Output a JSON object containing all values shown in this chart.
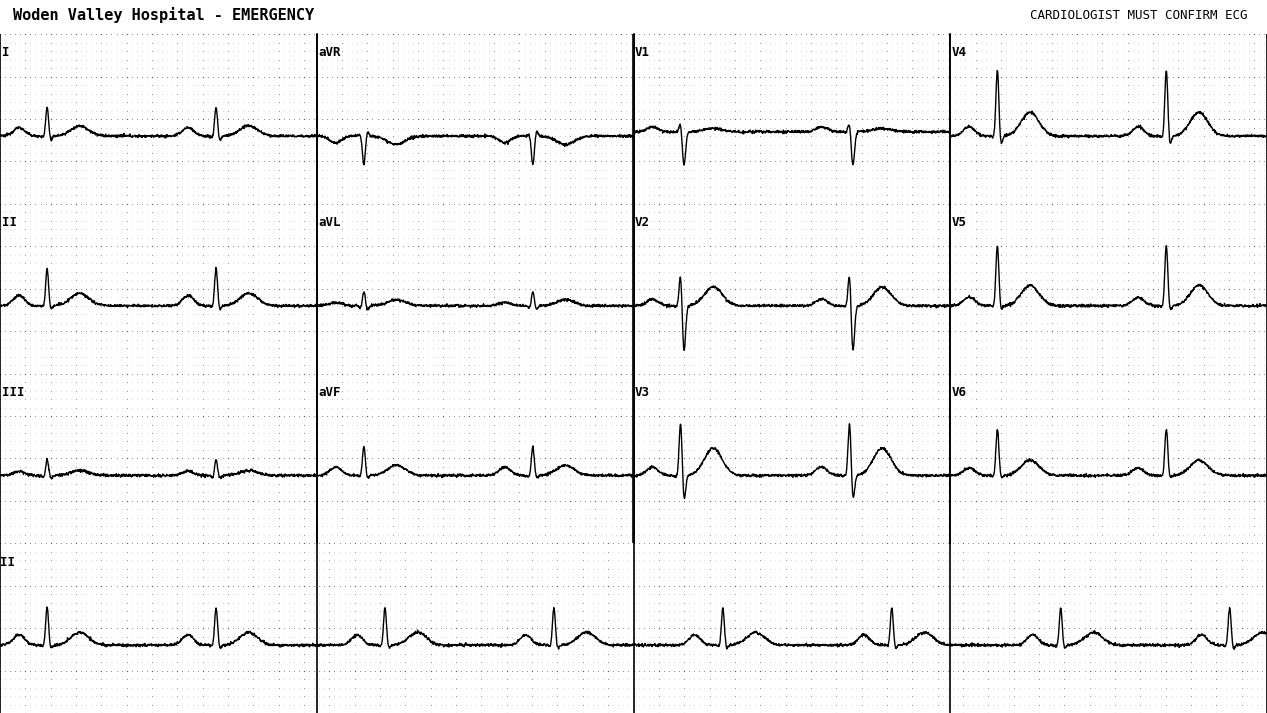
{
  "title_left": "Woden Valley Hospital - EMERGENCY",
  "title_right": "CARDIOLOGIST MUST CONFIRM ECG",
  "background_color": "#ffffff",
  "dot_color": "#aaaaaa",
  "major_dot_color": "#888888",
  "ecg_color": "#000000",
  "title_color": "#000000",
  "fig_width": 12.67,
  "fig_height": 7.13,
  "dpi": 100,
  "heart_rate": 45,
  "leads_row1": [
    "I",
    "aVR",
    "V1",
    "V4"
  ],
  "leads_row2": [
    "II",
    "aVL",
    "V2",
    "V5"
  ],
  "leads_row3": [
    "III",
    "aVF",
    "V3",
    "V6"
  ],
  "lead_rhythm": "II",
  "p_amps": {
    "I": 0.1,
    "II": 0.12,
    "III": 0.05,
    "aVR": -0.08,
    "aVL": 0.04,
    "aVF": 0.1,
    "V1": 0.06,
    "V2": 0.08,
    "V3": 0.1,
    "V4": 0.11,
    "V5": 0.1,
    "V6": 0.09
  },
  "q_amps": {
    "I": -0.03,
    "II": -0.03,
    "III": -0.04,
    "aVR": 0.03,
    "aVL": -0.04,
    "aVF": -0.03,
    "V1": -0.01,
    "V2": -0.02,
    "V3": -0.03,
    "V4": -0.04,
    "V5": -0.03,
    "V6": -0.03
  },
  "r_amps": {
    "I": 0.35,
    "II": 0.45,
    "III": 0.2,
    "aVR": -0.35,
    "aVL": 0.18,
    "aVF": 0.35,
    "V1": 0.12,
    "V2": 0.4,
    "V3": 0.65,
    "V4": 0.8,
    "V5": 0.72,
    "V6": 0.55
  },
  "s_amps": {
    "I": -0.06,
    "II": -0.05,
    "III": -0.04,
    "aVR": 0.06,
    "aVL": -0.05,
    "aVF": -0.04,
    "V1": -0.4,
    "V2": -0.55,
    "V3": -0.3,
    "V4": -0.12,
    "V5": -0.06,
    "V6": -0.04
  },
  "t_amps": {
    "I": 0.12,
    "II": 0.15,
    "III": 0.06,
    "aVR": -0.1,
    "aVL": 0.07,
    "aVF": 0.12,
    "V1": 0.04,
    "V2": 0.22,
    "V3": 0.32,
    "V4": 0.28,
    "V5": 0.24,
    "V6": 0.18
  },
  "baseline_offset": {
    "I": 0.0,
    "II": 0.0,
    "III": 0.0,
    "aVR": 0.0,
    "aVL": 0.0,
    "aVF": 0.0,
    "V1": 0.05,
    "V2": 0.0,
    "V3": 0.0,
    "V4": 0.0,
    "V5": 0.0,
    "V6": 0.0
  }
}
